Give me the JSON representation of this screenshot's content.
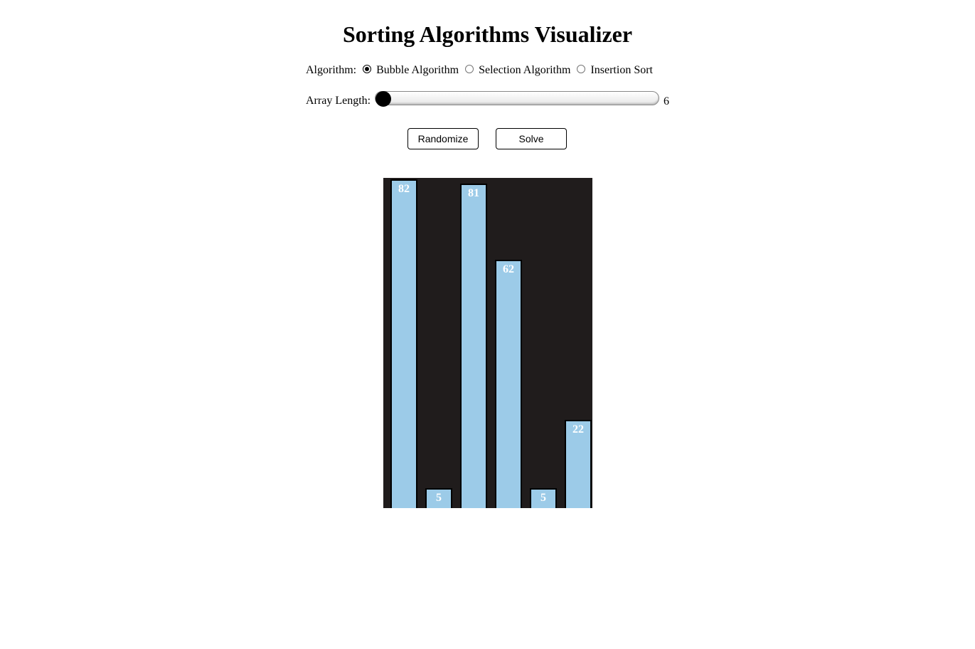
{
  "header": {
    "title": "Sorting Algorithms Visualizer"
  },
  "algorithm": {
    "label": "Algorithm:",
    "options": [
      {
        "label": "Bubble Algorithm",
        "checked": true
      },
      {
        "label": "Selection Algorithm",
        "checked": false
      },
      {
        "label": "Insertion Sort",
        "checked": false
      }
    ]
  },
  "array_length": {
    "label": "Array Length:",
    "value": "6",
    "slider_fraction": 0.0
  },
  "buttons": {
    "randomize_label": "Randomize",
    "solve_label": "Solve"
  },
  "colors": {
    "bar_fill": "#9ccbe8",
    "chart_background": "#201c1c"
  },
  "chart_data": {
    "type": "bar",
    "categories": [
      "",
      "",
      "",
      "",
      "",
      ""
    ],
    "values": [
      82,
      5,
      81,
      62,
      5,
      22
    ],
    "data_labels": [
      "82",
      "5",
      "81",
      "62",
      "5",
      "22"
    ],
    "ylim": [
      0,
      82
    ],
    "grid": false
  }
}
